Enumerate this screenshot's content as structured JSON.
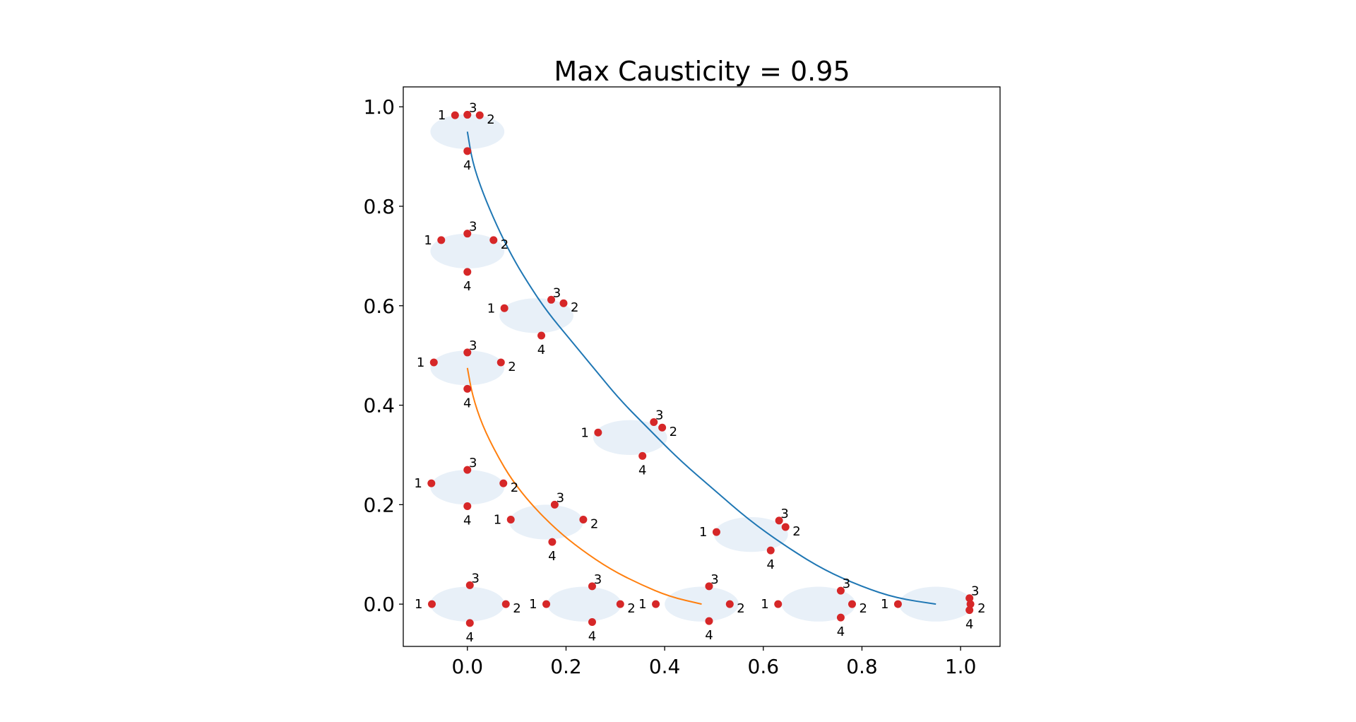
{
  "chart_data": {
    "type": "scatter",
    "title": "Max Causticity = 0.95",
    "xlim": [
      -0.13,
      1.08
    ],
    "ylim": [
      -0.085,
      1.04
    ],
    "x_ticks": [
      0.0,
      0.2,
      0.4,
      0.6,
      0.8,
      1.0
    ],
    "y_ticks": [
      0.0,
      0.2,
      0.4,
      0.6,
      0.8,
      1.0
    ],
    "x_tick_labels": [
      "0.0",
      "0.2",
      "0.4",
      "0.6",
      "0.8",
      "1.0"
    ],
    "y_tick_labels": [
      "0.0",
      "0.2",
      "0.4",
      "0.6",
      "0.8",
      "1.0"
    ],
    "grid": false,
    "colors": {
      "curve_outer": "#1f77b4",
      "curve_inner": "#ff7f0e",
      "points": "#d62728",
      "ellipse_fill": "#e8f0f8"
    },
    "curves": [
      {
        "points": [
          [
            0.0,
            0.95
          ],
          [
            0.01,
            0.89
          ],
          [
            0.03,
            0.83
          ],
          [
            0.06,
            0.76
          ],
          [
            0.09,
            0.7
          ],
          [
            0.12,
            0.65
          ],
          [
            0.16,
            0.59
          ],
          [
            0.21,
            0.53
          ],
          [
            0.26,
            0.47
          ],
          [
            0.31,
            0.41
          ],
          [
            0.37,
            0.35
          ],
          [
            0.43,
            0.29
          ],
          [
            0.5,
            0.23
          ],
          [
            0.57,
            0.17
          ],
          [
            0.64,
            0.12
          ],
          [
            0.72,
            0.07
          ],
          [
            0.8,
            0.035
          ],
          [
            0.87,
            0.012
          ],
          [
            0.95,
            0.0
          ]
        ]
      },
      {
        "points": [
          [
            0.0,
            0.475
          ],
          [
            0.01,
            0.42
          ],
          [
            0.03,
            0.36
          ],
          [
            0.06,
            0.3
          ],
          [
            0.09,
            0.25
          ],
          [
            0.13,
            0.2
          ],
          [
            0.18,
            0.15
          ],
          [
            0.23,
            0.11
          ],
          [
            0.29,
            0.07
          ],
          [
            0.35,
            0.04
          ],
          [
            0.41,
            0.015
          ],
          [
            0.475,
            0.0
          ]
        ]
      }
    ],
    "ellipses": [
      {
        "center": [
          0.0,
          0.95
        ],
        "rx": 0.075,
        "ry": 0.035
      },
      {
        "center": [
          0.0,
          0.71
        ],
        "rx": 0.075,
        "ry": 0.035
      },
      {
        "center": [
          0.14,
          0.58
        ],
        "rx": 0.075,
        "ry": 0.035
      },
      {
        "center": [
          0.0,
          0.475
        ],
        "rx": 0.075,
        "ry": 0.035
      },
      {
        "center": [
          0.33,
          0.335
        ],
        "rx": 0.075,
        "ry": 0.035
      },
      {
        "center": [
          0.0,
          0.235
        ],
        "rx": 0.075,
        "ry": 0.035
      },
      {
        "center": [
          0.16,
          0.165
        ],
        "rx": 0.075,
        "ry": 0.035
      },
      {
        "center": [
          0.575,
          0.14
        ],
        "rx": 0.075,
        "ry": 0.035
      },
      {
        "center": [
          0.0,
          0.0
        ],
        "rx": 0.075,
        "ry": 0.035
      },
      {
        "center": [
          0.237,
          0.0
        ],
        "rx": 0.075,
        "ry": 0.035
      },
      {
        "center": [
          0.475,
          0.0
        ],
        "rx": 0.075,
        "ry": 0.035
      },
      {
        "center": [
          0.712,
          0.0
        ],
        "rx": 0.075,
        "ry": 0.035
      },
      {
        "center": [
          0.95,
          0.0
        ],
        "rx": 0.075,
        "ry": 0.035
      }
    ],
    "points": [
      {
        "x": -0.025,
        "y": 0.983,
        "label": "1"
      },
      {
        "x": 0.025,
        "y": 0.983,
        "label": "2"
      },
      {
        "x": 0.0,
        "y": 0.984,
        "label": "3"
      },
      {
        "x": 0.0,
        "y": 0.911,
        "label": "4"
      },
      {
        "x": -0.053,
        "y": 0.732,
        "label": "1"
      },
      {
        "x": 0.053,
        "y": 0.732,
        "label": "2"
      },
      {
        "x": 0.0,
        "y": 0.745,
        "label": "3"
      },
      {
        "x": 0.0,
        "y": 0.668,
        "label": "4"
      },
      {
        "x": 0.075,
        "y": 0.595,
        "label": "1"
      },
      {
        "x": 0.195,
        "y": 0.605,
        "label": "2"
      },
      {
        "x": 0.17,
        "y": 0.612,
        "label": "3"
      },
      {
        "x": 0.15,
        "y": 0.54,
        "label": "4"
      },
      {
        "x": -0.068,
        "y": 0.486,
        "label": "1"
      },
      {
        "x": 0.068,
        "y": 0.486,
        "label": "2"
      },
      {
        "x": 0.0,
        "y": 0.506,
        "label": "3"
      },
      {
        "x": 0.0,
        "y": 0.433,
        "label": "4"
      },
      {
        "x": 0.265,
        "y": 0.345,
        "label": "1"
      },
      {
        "x": 0.395,
        "y": 0.355,
        "label": "2"
      },
      {
        "x": 0.378,
        "y": 0.366,
        "label": "3"
      },
      {
        "x": 0.355,
        "y": 0.298,
        "label": "4"
      },
      {
        "x": -0.073,
        "y": 0.243,
        "label": "1"
      },
      {
        "x": 0.073,
        "y": 0.243,
        "label": "2"
      },
      {
        "x": 0.0,
        "y": 0.27,
        "label": "3"
      },
      {
        "x": 0.0,
        "y": 0.197,
        "label": "4"
      },
      {
        "x": 0.088,
        "y": 0.17,
        "label": "1"
      },
      {
        "x": 0.235,
        "y": 0.17,
        "label": "2"
      },
      {
        "x": 0.177,
        "y": 0.2,
        "label": "3"
      },
      {
        "x": 0.172,
        "y": 0.125,
        "label": "4"
      },
      {
        "x": 0.505,
        "y": 0.145,
        "label": "1"
      },
      {
        "x": 0.645,
        "y": 0.155,
        "label": "2"
      },
      {
        "x": 0.632,
        "y": 0.168,
        "label": "3"
      },
      {
        "x": 0.615,
        "y": 0.108,
        "label": "4"
      },
      {
        "x": -0.072,
        "y": 0.0,
        "label": "1"
      },
      {
        "x": 0.078,
        "y": 0.0,
        "label": "2"
      },
      {
        "x": 0.005,
        "y": 0.038,
        "label": "3"
      },
      {
        "x": 0.005,
        "y": -0.038,
        "label": "4"
      },
      {
        "x": 0.16,
        "y": 0.0,
        "label": "1"
      },
      {
        "x": 0.31,
        "y": 0.0,
        "label": "2"
      },
      {
        "x": 0.253,
        "y": 0.036,
        "label": "3"
      },
      {
        "x": 0.253,
        "y": -0.036,
        "label": "4"
      },
      {
        "x": 0.382,
        "y": 0.0,
        "label": "1"
      },
      {
        "x": 0.532,
        "y": 0.0,
        "label": "2"
      },
      {
        "x": 0.49,
        "y": 0.036,
        "label": "3"
      },
      {
        "x": 0.49,
        "y": -0.034,
        "label": "4"
      },
      {
        "x": 0.63,
        "y": 0.0,
        "label": "1"
      },
      {
        "x": 0.78,
        "y": 0.0,
        "label": "2"
      },
      {
        "x": 0.757,
        "y": 0.027,
        "label": "3"
      },
      {
        "x": 0.757,
        "y": -0.027,
        "label": "4"
      },
      {
        "x": 0.873,
        "y": 0.0,
        "label": "1"
      },
      {
        "x": 1.02,
        "y": 0.0,
        "label": "2"
      },
      {
        "x": 1.018,
        "y": 0.012,
        "label": "3"
      },
      {
        "x": 1.018,
        "y": -0.012,
        "label": "4"
      }
    ]
  }
}
